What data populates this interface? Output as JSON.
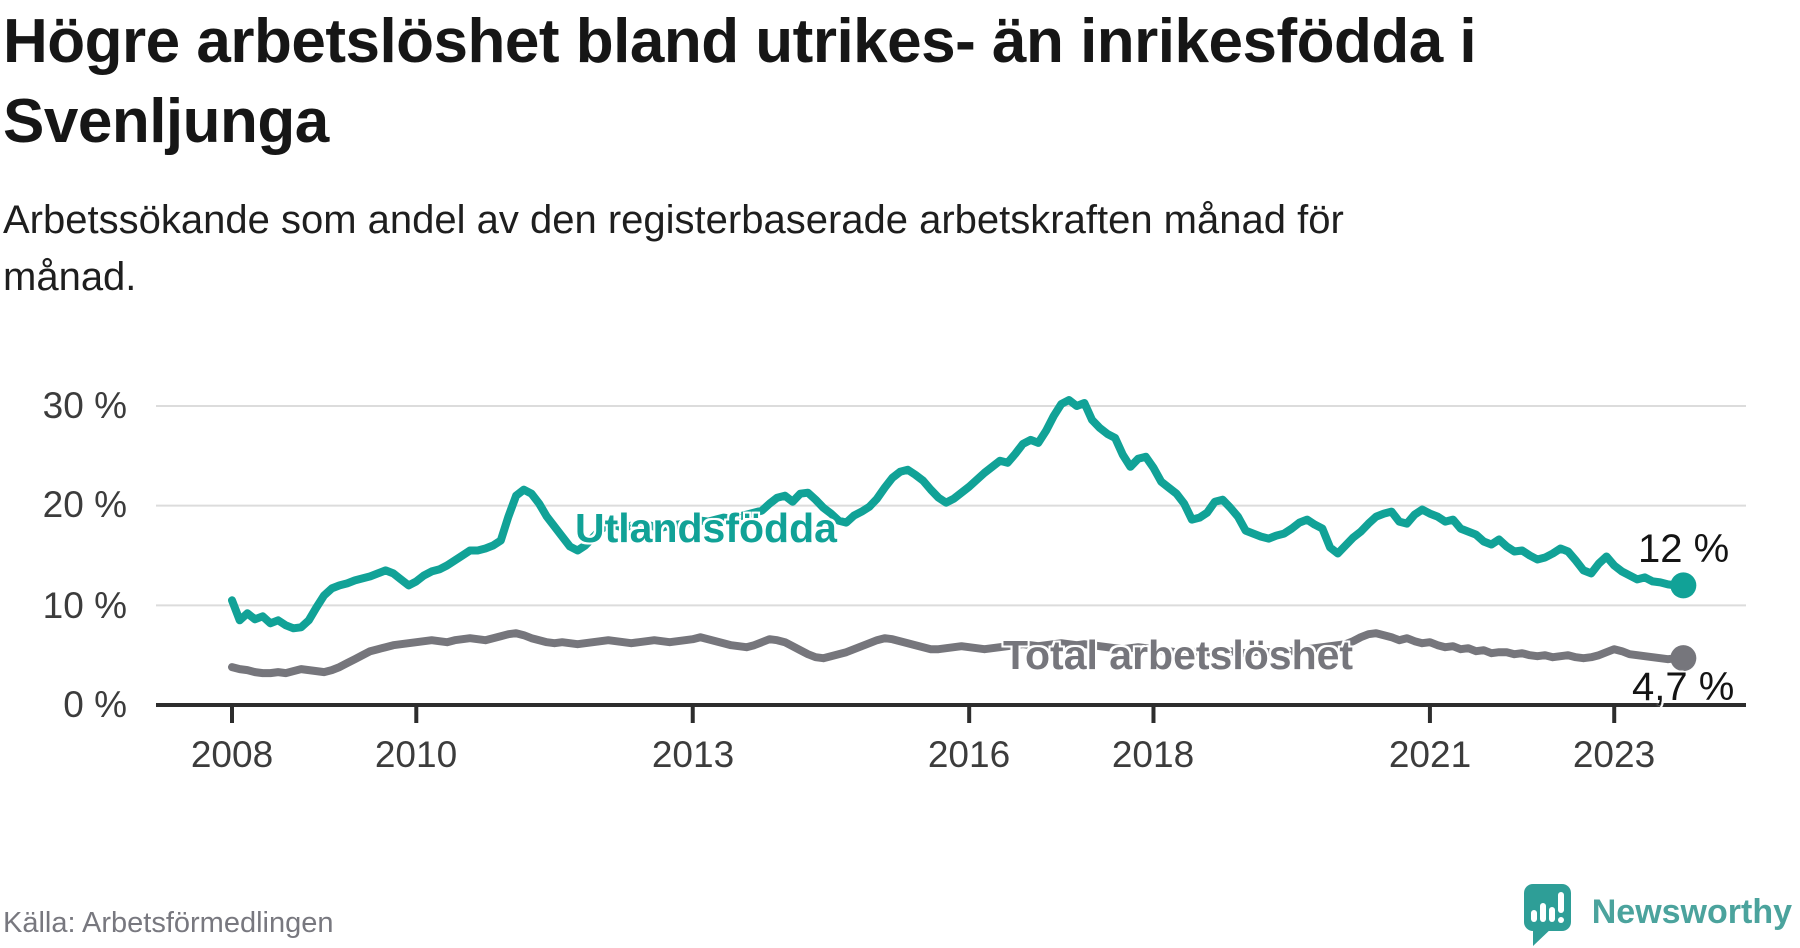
{
  "title_lines": [
    "Högre arbetslöshet bland utrikes- än inrikesfödda i",
    "Svenljunga"
  ],
  "subtitle_lines": [
    "Arbetssökande som andel av den registerbaserade arbetskraften månad för",
    "månad."
  ],
  "source": "Källa: Arbetsförmedlingen",
  "brand": {
    "name": "Newsworthy",
    "bubble_color": "#2e9e97",
    "text_color": "#4ba39d"
  },
  "colors": {
    "foreign_born_line": "#11a297",
    "total_line": "#76767c",
    "grid": "#dcdcdc",
    "axis": "#2d2d2d",
    "title_text": "#161616",
    "tick_text": "#3c3c3c",
    "end_label_text": "#141414",
    "source_text": "#78787f"
  },
  "chart_data": {
    "type": "line",
    "title": "Högre arbetslöshet bland utrikes- än inrikesfödda i Svenljunga",
    "subtitle": "Arbetssökande som andel av den registerbaserade arbetskraften månad för månad.",
    "xlabel": "",
    "ylabel": "",
    "unit": "%",
    "frequency": "monthly",
    "x_start": "2008-01",
    "x_end": "2023-10",
    "ylim": [
      0,
      32
    ],
    "grid": "horizontal",
    "legend_position": "inline-labels",
    "y_ticks": [
      {
        "value": 30,
        "label": "30 %"
      },
      {
        "value": 20,
        "label": "20 %"
      },
      {
        "value": 10,
        "label": "10 %"
      },
      {
        "value": 0,
        "label": "0 %"
      }
    ],
    "x_ticks": [
      {
        "year": 2008,
        "label": "2008"
      },
      {
        "year": 2010,
        "label": "2010"
      },
      {
        "year": 2013,
        "label": "2013"
      },
      {
        "year": 2016,
        "label": "2016"
      },
      {
        "year": 2018,
        "label": "2018"
      },
      {
        "year": 2021,
        "label": "2021"
      },
      {
        "year": 2023,
        "label": "2023"
      }
    ],
    "series": [
      {
        "name": "Utlandsfödda",
        "color": "#11a297",
        "end_label": "12 %",
        "end_value": 12.0,
        "values": [
          10.5,
          8.5,
          9.2,
          8.6,
          8.9,
          8.2,
          8.5,
          8.0,
          7.7,
          7.8,
          8.5,
          9.8,
          11.0,
          11.7,
          12.0,
          12.2,
          12.5,
          12.7,
          12.9,
          13.2,
          13.5,
          13.2,
          12.6,
          12.0,
          12.4,
          13.0,
          13.4,
          13.6,
          14.0,
          14.5,
          15.0,
          15.5,
          15.5,
          15.7,
          16.0,
          16.5,
          18.9,
          21.0,
          21.6,
          21.2,
          20.2,
          18.9,
          17.9,
          16.9,
          15.9,
          15.5,
          16.0,
          16.8,
          17.6,
          18.1,
          18.0,
          17.8,
          18.0,
          18.2,
          18.1,
          17.9,
          17.8,
          18.0,
          18.1,
          18.2,
          18.3,
          18.5,
          18.4,
          18.6,
          18.8,
          18.7,
          18.9,
          19.1,
          19.3,
          19.5,
          20.2,
          20.8,
          21.0,
          20.4,
          21.2,
          21.3,
          20.6,
          19.8,
          19.2,
          18.5,
          18.3,
          19.0,
          19.4,
          19.9,
          20.7,
          21.8,
          22.8,
          23.4,
          23.6,
          23.1,
          22.5,
          21.6,
          20.8,
          20.3,
          20.7,
          21.3,
          21.9,
          22.6,
          23.3,
          23.9,
          24.5,
          24.3,
          25.2,
          26.2,
          26.6,
          26.3,
          27.5,
          29.0,
          30.2,
          30.6,
          30.0,
          30.3,
          28.6,
          27.8,
          27.2,
          26.8,
          25.1,
          23.9,
          24.7,
          24.9,
          23.8,
          22.4,
          21.8,
          21.2,
          20.2,
          18.6,
          18.8,
          19.3,
          20.4,
          20.6,
          19.8,
          18.9,
          17.5,
          17.2,
          16.9,
          16.7,
          17.0,
          17.2,
          17.7,
          18.3,
          18.6,
          18.1,
          17.7,
          15.8,
          15.2,
          16.0,
          16.8,
          17.4,
          18.2,
          18.9,
          19.2,
          19.4,
          18.4,
          18.2,
          19.1,
          19.6,
          19.2,
          18.9,
          18.4,
          18.6,
          17.7,
          17.4,
          17.1,
          16.4,
          16.1,
          16.6,
          15.9,
          15.4,
          15.5,
          15.0,
          14.6,
          14.8,
          15.2,
          15.7,
          15.4,
          14.5,
          13.5,
          13.2,
          14.2,
          14.9,
          14.0,
          13.4,
          13.0,
          12.6,
          12.8,
          12.4,
          12.3,
          12.1,
          12.0,
          12.0
        ]
      },
      {
        "name": "Total arbetslöshet",
        "color": "#76767c",
        "end_label": "4,7 %",
        "end_value": 4.7,
        "values": [
          3.8,
          3.6,
          3.5,
          3.3,
          3.2,
          3.2,
          3.3,
          3.2,
          3.4,
          3.6,
          3.5,
          3.4,
          3.3,
          3.5,
          3.8,
          4.2,
          4.6,
          5.0,
          5.4,
          5.6,
          5.8,
          6.0,
          6.1,
          6.2,
          6.3,
          6.4,
          6.5,
          6.4,
          6.3,
          6.5,
          6.6,
          6.7,
          6.6,
          6.5,
          6.7,
          6.9,
          7.1,
          7.2,
          7.0,
          6.7,
          6.5,
          6.3,
          6.2,
          6.3,
          6.2,
          6.1,
          6.2,
          6.3,
          6.4,
          6.5,
          6.4,
          6.3,
          6.2,
          6.3,
          6.4,
          6.5,
          6.4,
          6.3,
          6.4,
          6.5,
          6.6,
          6.8,
          6.6,
          6.4,
          6.2,
          6.0,
          5.9,
          5.8,
          6.0,
          6.3,
          6.6,
          6.5,
          6.3,
          5.9,
          5.5,
          5.1,
          4.8,
          4.7,
          4.9,
          5.1,
          5.3,
          5.6,
          5.9,
          6.2,
          6.5,
          6.7,
          6.6,
          6.4,
          6.2,
          6.0,
          5.8,
          5.6,
          5.6,
          5.7,
          5.8,
          5.9,
          5.8,
          5.7,
          5.6,
          5.7,
          5.8,
          5.9,
          6.0,
          6.1,
          6.0,
          5.9,
          6.0,
          6.1,
          6.2,
          6.1,
          6.0,
          6.1,
          6.0,
          5.9,
          5.8,
          5.7,
          5.6,
          5.7,
          5.8,
          5.7,
          5.6,
          5.5,
          5.4,
          5.3,
          5.2,
          5.3,
          5.4,
          5.3,
          5.2,
          5.3,
          5.4,
          5.3,
          5.2,
          5.3,
          5.4,
          5.3,
          5.4,
          5.5,
          5.4,
          5.5,
          5.6,
          5.7,
          5.8,
          5.9,
          6.0,
          6.1,
          6.4,
          6.8,
          7.1,
          7.2,
          7.0,
          6.8,
          6.5,
          6.7,
          6.4,
          6.2,
          6.3,
          6.0,
          5.8,
          5.9,
          5.6,
          5.7,
          5.4,
          5.5,
          5.2,
          5.3,
          5.3,
          5.1,
          5.2,
          5.0,
          4.9,
          5.0,
          4.8,
          4.9,
          5.0,
          4.8,
          4.7,
          4.8,
          5.0,
          5.3,
          5.6,
          5.4,
          5.1,
          5.0,
          4.9,
          4.8,
          4.7,
          4.6,
          4.7,
          4.7
        ]
      }
    ]
  }
}
